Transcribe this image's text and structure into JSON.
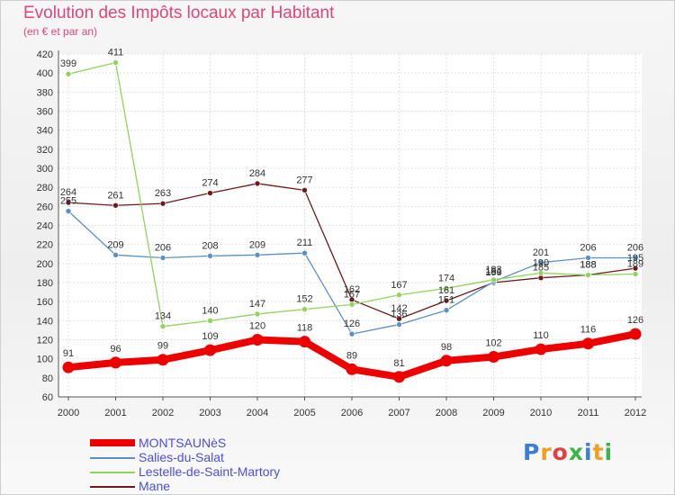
{
  "title": "Evolution des Impôts locaux par Habitant",
  "subtitle": "(en € et par an)",
  "logo": {
    "text": "Proxiti",
    "letter_colors": [
      "#3a7fd5",
      "#f0a020",
      "#e04040",
      "#3ab54a",
      "#3a7fd5",
      "#f0a020",
      "#3ab54a"
    ]
  },
  "chart_data": {
    "type": "line",
    "x": [
      "2000",
      "2001",
      "2002",
      "2003",
      "2004",
      "2005",
      "2006",
      "2007",
      "2008",
      "2009",
      "2010",
      "2011",
      "2012"
    ],
    "ylim": [
      60,
      420
    ],
    "yticks": [
      60,
      80,
      100,
      120,
      140,
      160,
      180,
      200,
      220,
      240,
      260,
      280,
      300,
      320,
      340,
      360,
      380,
      400,
      420
    ],
    "grid": true,
    "legend_position": "bottom-left",
    "series": [
      {
        "name": "Mane",
        "color": "#6e1a1a",
        "width": 1.3,
        "values": [
          264,
          261,
          263,
          274,
          284,
          277,
          162,
          142,
          161,
          180,
          185,
          188,
          195
        ],
        "labels": [
          "264",
          "261",
          "263",
          "274",
          "284",
          "277",
          "162",
          "142",
          "161",
          "180",
          "185",
          "188",
          "195"
        ]
      },
      {
        "name": "Salies-du-Salat",
        "color": "#5b8fc8",
        "width": 1.3,
        "values": [
          255,
          209,
          206,
          208,
          209,
          211,
          126,
          136,
          151,
          181,
          201,
          206,
          206
        ],
        "labels": [
          "255",
          "209",
          "206",
          "208",
          "209",
          "211",
          "126",
          "136",
          "151",
          "181",
          "201",
          "206",
          "206"
        ]
      },
      {
        "name": "Lestelle-de-Saint-Martory",
        "color": "#8fd45a",
        "width": 1.3,
        "values": [
          399,
          411,
          134,
          140,
          147,
          152,
          157,
          167,
          174,
          183,
          190,
          188,
          189
        ],
        "labels": [
          "399",
          "411",
          "134",
          "140",
          "147",
          "152",
          "157",
          "167",
          "174",
          "183",
          "190",
          "188",
          "189"
        ]
      },
      {
        "name": "MONTSAUNèS",
        "color": "#ee0000",
        "width": 8,
        "values": [
          91,
          96,
          99,
          109,
          120,
          118,
          89,
          81,
          98,
          102,
          110,
          116,
          126
        ],
        "labels": [
          "91",
          "96",
          "99",
          "109",
          "120",
          "118",
          "89",
          "81",
          "98",
          "102",
          "110",
          "116",
          "126"
        ]
      }
    ]
  },
  "legend": [
    {
      "name": "MONTSAUNèS",
      "color": "#ee0000",
      "thick": true
    },
    {
      "name": "Salies-du-Salat",
      "color": "#5b8fc8",
      "thick": false
    },
    {
      "name": "Lestelle-de-Saint-Martory",
      "color": "#8fd45a",
      "thick": false
    },
    {
      "name": "Mane",
      "color": "#6e1a1a",
      "thick": false
    }
  ]
}
